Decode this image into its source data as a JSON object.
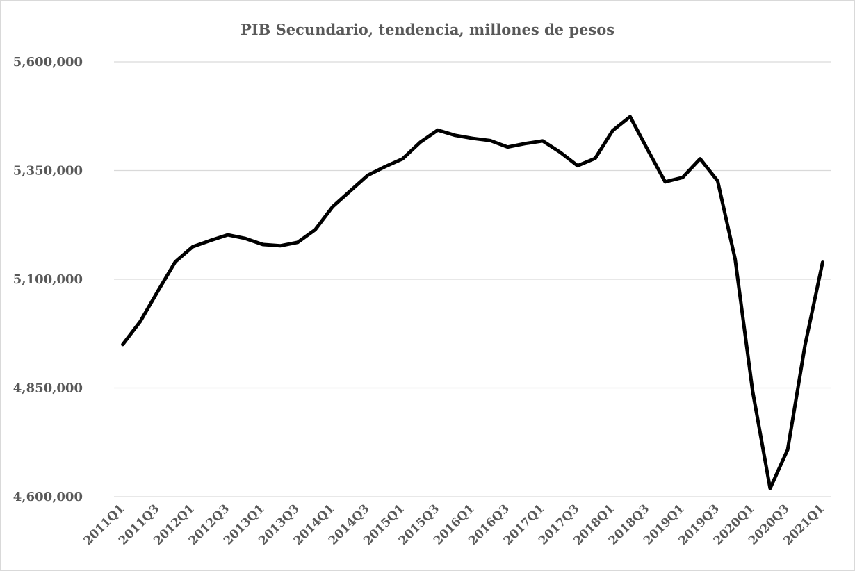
{
  "chart_data": {
    "type": "line",
    "title": "PIB Secundario, tendencia, millones de pesos",
    "xlabel": "",
    "ylabel": "",
    "ylim": [
      4600000,
      5600000
    ],
    "yticks": [
      4600000,
      4850000,
      5100000,
      5350000,
      5600000
    ],
    "ytick_labels": [
      "4,600,000",
      "4,850,000",
      "5,100,000",
      "5,350,000",
      "5,600,000"
    ],
    "grid": true,
    "legend": "none",
    "line_color": "#000000",
    "x": [
      "2011Q1",
      "2011Q2",
      "2011Q3",
      "2011Q4",
      "2012Q1",
      "2012Q2",
      "2012Q3",
      "2012Q4",
      "2013Q1",
      "2013Q2",
      "2013Q3",
      "2013Q4",
      "2014Q1",
      "2014Q2",
      "2014Q3",
      "2014Q4",
      "2015Q1",
      "2015Q2",
      "2015Q3",
      "2015Q4",
      "2016Q1",
      "2016Q2",
      "2016Q3",
      "2016Q4",
      "2017Q1",
      "2017Q2",
      "2017Q3",
      "2017Q4",
      "2018Q1",
      "2018Q2",
      "2018Q3",
      "2018Q4",
      "2019Q1",
      "2019Q2",
      "2019Q3",
      "2019Q4",
      "2020Q1",
      "2020Q2",
      "2020Q3",
      "2020Q4",
      "2021Q1"
    ],
    "xtick_labels": [
      "2011Q1",
      "2011Q3",
      "2012Q1",
      "2012Q3",
      "2013Q1",
      "2013Q3",
      "2014Q1",
      "2014Q3",
      "2015Q1",
      "2015Q3",
      "2016Q1",
      "2016Q3",
      "2017Q1",
      "2017Q3",
      "2018Q1",
      "2018Q3",
      "2019Q1",
      "2019Q3",
      "2020Q1",
      "2020Q3",
      "2021Q1"
    ],
    "series": [
      {
        "values": [
          4950000,
          5003000,
          5072000,
          5140000,
          5175000,
          5189000,
          5202000,
          5194000,
          5180000,
          5177000,
          5185000,
          5214000,
          5267000,
          5303000,
          5339000,
          5359000,
          5377000,
          5415000,
          5443000,
          5431000,
          5424000,
          5419000,
          5404000,
          5412000,
          5418000,
          5392000,
          5361000,
          5378000,
          5442000,
          5474000,
          5398000,
          5324000,
          5334000,
          5377000,
          5326000,
          5146000,
          4843000,
          4619000,
          4708000,
          4949000,
          5139000
        ]
      }
    ]
  }
}
